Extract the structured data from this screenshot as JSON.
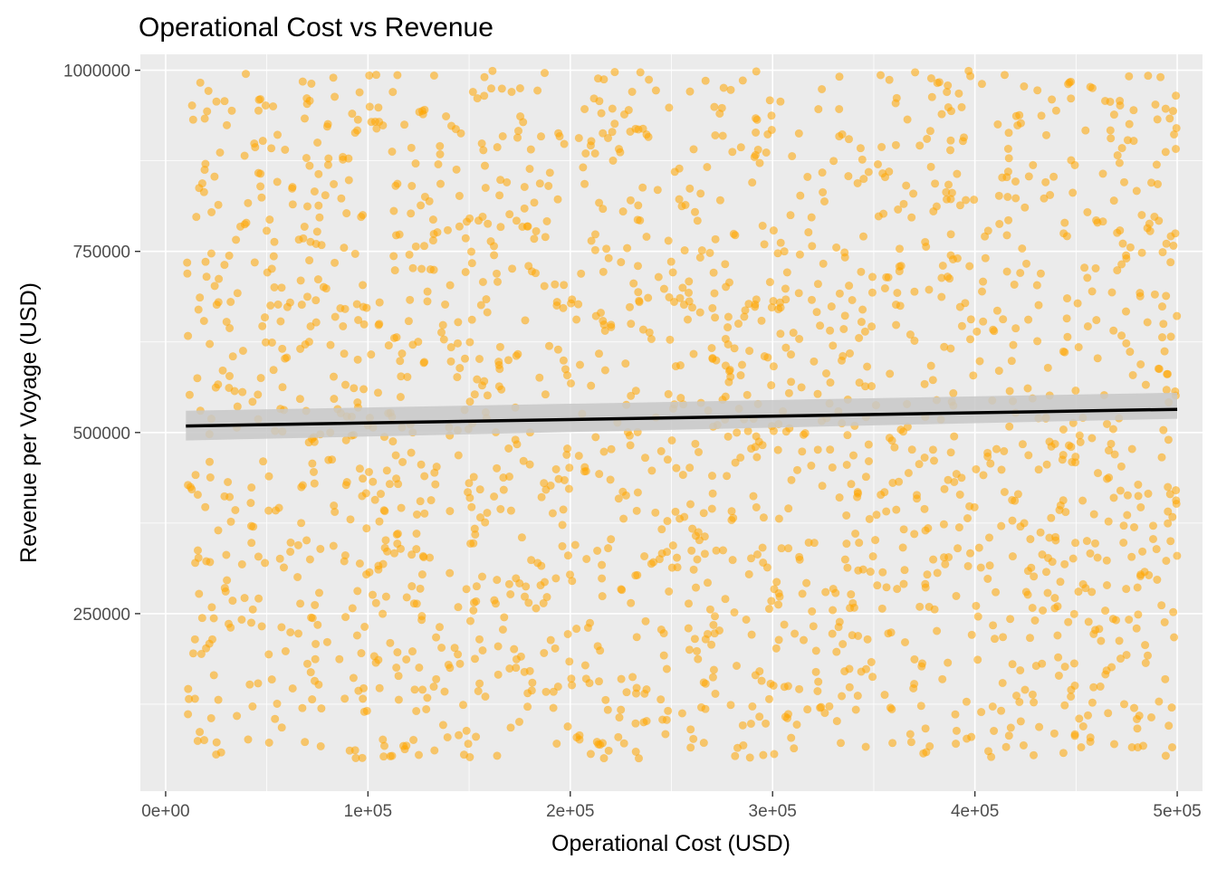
{
  "chart_data": {
    "type": "scatter",
    "title": "Operational Cost vs Revenue",
    "xlabel": "Operational Cost (USD)",
    "ylabel": "Revenue per Voyage (USD)",
    "xlim": [
      -12500,
      512500
    ],
    "ylim": [
      5000,
      1022000
    ],
    "x_ticks": [
      {
        "value": 0,
        "label": "0e+00"
      },
      {
        "value": 100000,
        "label": "1e+05"
      },
      {
        "value": 200000,
        "label": "2e+05"
      },
      {
        "value": 300000,
        "label": "3e+05"
      },
      {
        "value": 400000,
        "label": "4e+05"
      },
      {
        "value": 500000,
        "label": "5e+05"
      }
    ],
    "y_ticks": [
      {
        "value": 250000,
        "label": "250000"
      },
      {
        "value": 500000,
        "label": "500000"
      },
      {
        "value": 750000,
        "label": "750000"
      },
      {
        "value": 1000000,
        "label": "1000000"
      }
    ],
    "grid": true,
    "points": {
      "color": "#FFA500",
      "opacity": 0.55,
      "count_approx": 2000,
      "x_range": [
        10000,
        500000
      ],
      "y_range": [
        50000,
        1000000
      ],
      "distribution": "uniform"
    },
    "trend_line": {
      "method": "linear",
      "color": "#000000",
      "x": [
        10000,
        500000
      ],
      "y": [
        509000,
        532000
      ],
      "ci_band_color": "#C8C8C8",
      "ci_lower": [
        489000,
        519000
      ],
      "ci_upper": [
        530000,
        555000
      ]
    },
    "panel_background": "#EBEBEB",
    "gridline_color": "#FFFFFF"
  }
}
